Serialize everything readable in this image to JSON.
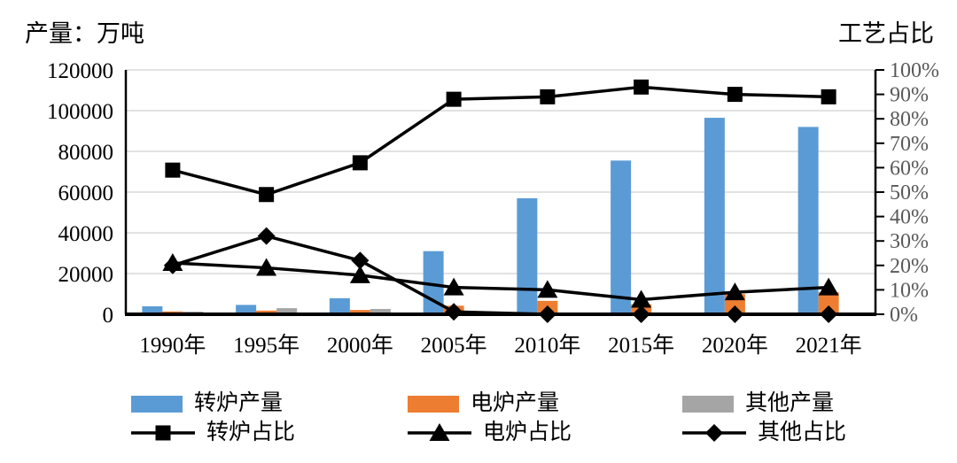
{
  "titles": {
    "left": "产量：万吨",
    "right": "工艺占比"
  },
  "colors": {
    "converter_bar": "#5B9BD5",
    "eaf_bar": "#ED7D31",
    "other_bar": "#A5A5A5",
    "line": "#000000",
    "gridline": "#D9D9D9",
    "axis": "#000000",
    "left_tick_label": "#000000",
    "right_tick_label": "#595959",
    "x_tick_label": "#000000"
  },
  "chart_data": {
    "type": "combo-bar-line",
    "categories": [
      "1990年",
      "1995年",
      "2000年",
      "2005年",
      "2010年",
      "2015年",
      "2020年",
      "2021年"
    ],
    "left_axis": {
      "title": "产量：万吨",
      "unit": "万吨",
      "min": 0,
      "max": 120000,
      "step": 20000,
      "tick_labels": [
        "0",
        "20000",
        "40000",
        "60000",
        "80000",
        "100000",
        "120000"
      ]
    },
    "right_axis": {
      "title": "工艺占比",
      "unit": "%",
      "min": 0,
      "max": 100,
      "step": 10,
      "tick_labels": [
        "0%",
        "10%",
        "20%",
        "30%",
        "40%",
        "50%",
        "60%",
        "70%",
        "80%",
        "90%",
        "100%"
      ]
    },
    "bar_series": [
      {
        "key": "converter-production",
        "name": "转炉产量",
        "axis": "left",
        "color": "#5B9BD5",
        "values": [
          3900,
          4600,
          7900,
          31000,
          57000,
          75500,
          96500,
          92000
        ]
      },
      {
        "key": "eaf-production",
        "name": "电炉产量",
        "axis": "left",
        "color": "#ED7D31",
        "values": [
          1400,
          1800,
          2100,
          4200,
          6600,
          4900,
          9900,
          10800
        ]
      },
      {
        "key": "other-production",
        "name": "其他产量",
        "axis": "left",
        "color": "#A5A5A5",
        "values": [
          1300,
          3000,
          2600,
          200,
          0,
          0,
          0,
          0
        ]
      }
    ],
    "line_series": [
      {
        "key": "converter-share",
        "name": "转炉占比",
        "axis": "right",
        "marker": "square",
        "color": "#000000",
        "values": [
          59,
          49,
          62,
          88,
          89,
          93,
          90,
          89
        ]
      },
      {
        "key": "eaf-share",
        "name": "电炉占比",
        "axis": "right",
        "marker": "triangle",
        "color": "#000000",
        "values": [
          21,
          19,
          16,
          11,
          10,
          6,
          9,
          11
        ]
      },
      {
        "key": "other-share",
        "name": "其他占比",
        "axis": "right",
        "marker": "diamond",
        "color": "#000000",
        "values": [
          20,
          32,
          22,
          1,
          0,
          0,
          0,
          0
        ]
      }
    ],
    "grid": "horizontal",
    "legend_position": "bottom"
  }
}
